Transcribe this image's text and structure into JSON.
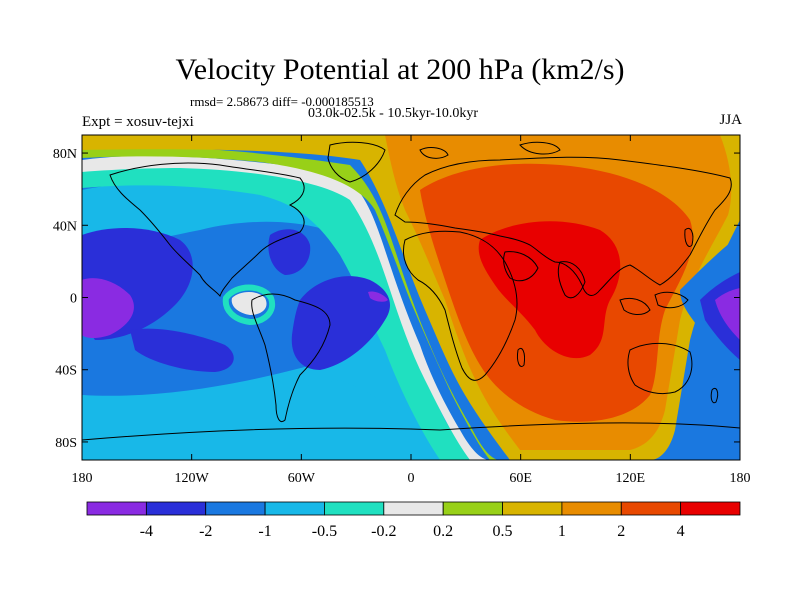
{
  "title": "Velocity Potential at 200 hPa (km2/s)",
  "stats_line": "rmsd= 2.58673 diff= -0.000185513",
  "expt_label": "Expt = xosuv-tejxi",
  "period_label": "03.0k-02.5k - 10.5kyr-10.0kyr",
  "season": "JJA",
  "map": {
    "projection": "cylindrical-equidistant",
    "lon_range": [
      -180,
      180
    ],
    "lat_range": [
      -90,
      90
    ],
    "x_tick_labels": [
      "180",
      "120W",
      "60W",
      "0",
      "60E",
      "120E",
      "180"
    ],
    "x_tick_values": [
      -180,
      -120,
      -60,
      0,
      60,
      120,
      180
    ],
    "y_tick_labels": [
      "80N",
      "40N",
      "0",
      "40S",
      "80S"
    ],
    "y_tick_values": [
      80,
      40,
      0,
      -40,
      -80
    ],
    "coastline_color": "#000000"
  },
  "colorbar": {
    "colors": [
      "#8a2be2",
      "#2a2fd8",
      "#1a78e0",
      "#18b8e8",
      "#20e0c0",
      "#e8e8e8",
      "#98d018",
      "#d8b400",
      "#e88c00",
      "#e84800",
      "#e80000"
    ],
    "labels": [
      "-4",
      "-2",
      "-1",
      "-0.5",
      "-0.2",
      "0.2",
      "0.5",
      "1",
      "2",
      "4"
    ]
  }
}
